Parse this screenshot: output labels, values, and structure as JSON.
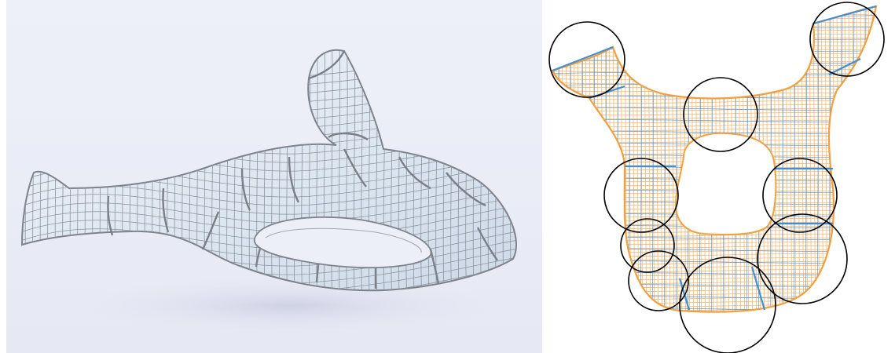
{
  "figure": {
    "panels": [
      {
        "id": "left",
        "kind": "3d-render",
        "subject": "quad-mesh-surface-with-hole",
        "style": "grey-feature-lines-on-pale-blue-surface"
      },
      {
        "id": "right",
        "kind": "2d-parameterization",
        "subject": "flattened-quad-mesh",
        "style": "orange-and-blue-isolines",
        "highlight_circles": 9
      }
    ],
    "colors": {
      "left_background": "#e9ebf7",
      "left_surface": "#dde6f1",
      "left_wire": "#858a92",
      "right_outline": "#f0a040",
      "right_iso_a": "#f6b870",
      "right_iso_b": "#3f8fd8",
      "circle": "#000000"
    }
  }
}
